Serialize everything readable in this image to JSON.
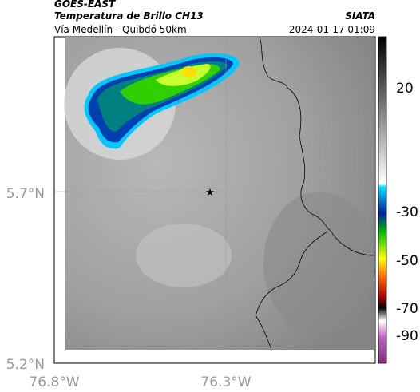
{
  "header": {
    "satellite": "GOES-EAST",
    "product": "Temperatura de Brillo CH13",
    "region": "Vía Medellín - Quibdó 50km",
    "source": "SIATA",
    "datetime": "2024-01-17 01:09"
  },
  "map": {
    "lat_ticks": [
      "5.7°N",
      "5.2°N"
    ],
    "lon_ticks": [
      "76.8°W",
      "76.3°W"
    ]
  },
  "colorbar": {
    "ticks": [
      20,
      -30,
      -50,
      -70,
      -90
    ]
  }
}
